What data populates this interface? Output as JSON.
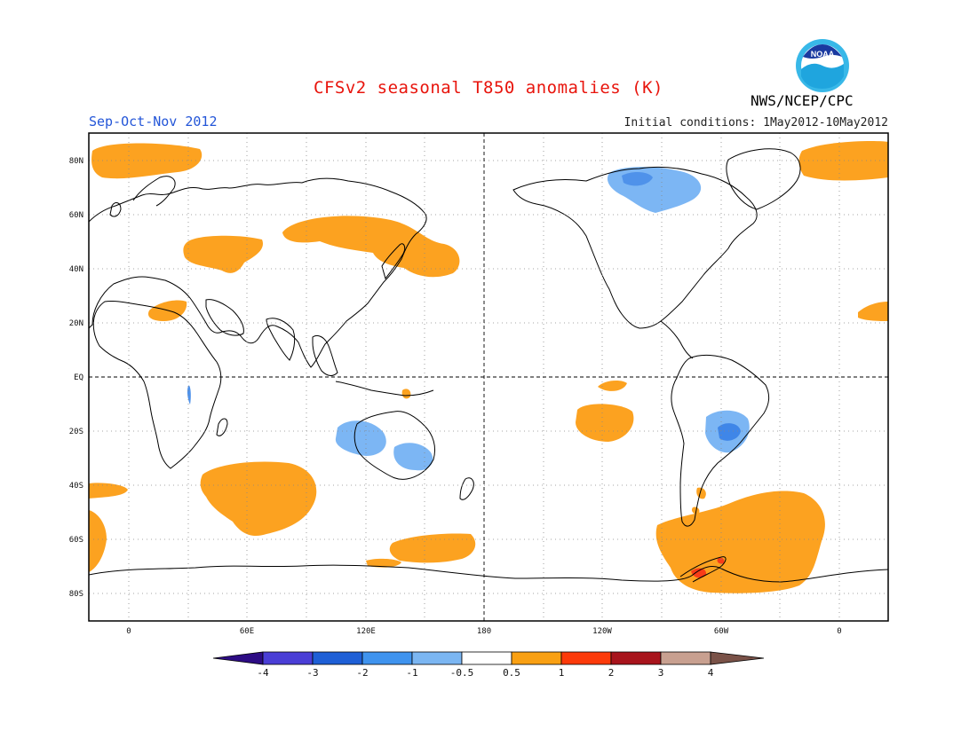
{
  "header": {
    "title": "CFSv2 seasonal T850 anomalies (K)",
    "season": "Sep-Oct-Nov 2012",
    "initial_conditions": "Initial conditions: 1May2012-10May2012",
    "agency": "NWS/NCEP/CPC",
    "logo_text": "NOAA"
  },
  "map": {
    "projection": "equirectangular",
    "longitude_range": [
      -20,
      380
    ],
    "latitude_range": [
      -90,
      90
    ],
    "lat_labels": [
      "80N",
      "60N",
      "40N",
      "20N",
      "EQ",
      "20S",
      "40S",
      "60S",
      "80S"
    ],
    "lon_labels": [
      "0",
      "60E",
      "120E",
      "180",
      "120W",
      "60W",
      "0"
    ],
    "grid": "dotted",
    "reference_lines": [
      "EQ",
      "180"
    ],
    "anomaly_regions": [
      {
        "name": "arctic-europe",
        "sign": "warm",
        "level": "0.5-1"
      },
      {
        "name": "central-asia-siberia",
        "sign": "warm",
        "level": "0.5-1"
      },
      {
        "name": "black-sea-caspian",
        "sign": "warm",
        "level": "0.5-1"
      },
      {
        "name": "north-africa-arabia",
        "sign": "warm",
        "level": "0.5-1"
      },
      {
        "name": "south-indian-ocean",
        "sign": "warm",
        "level": "0.5-1"
      },
      {
        "name": "southern-ocean-australia",
        "sign": "warm",
        "level": "0.5-1"
      },
      {
        "name": "south-atlantic-southeast",
        "sign": "warm",
        "level": "0.5-1"
      },
      {
        "name": "east-pacific-tropics",
        "sign": "warm",
        "level": "0.5-1"
      },
      {
        "name": "drake-passage-antarctic-peninsula",
        "sign": "warm",
        "level": "0.5-2"
      },
      {
        "name": "west-australia",
        "sign": "cool",
        "level": "-1--0.5"
      },
      {
        "name": "east-australia",
        "sign": "cool",
        "level": "-1--0.5"
      },
      {
        "name": "brazil-paraguay",
        "sign": "cool",
        "level": "-2--0.5"
      },
      {
        "name": "northern-canada",
        "sign": "cool",
        "level": "-1--0.5"
      },
      {
        "name": "new-guinea",
        "sign": "warm",
        "level": "0.5-1"
      }
    ]
  },
  "colorbar": {
    "labels": [
      "-4",
      "-3",
      "-2",
      "-1",
      "-0.5",
      "0.5",
      "1",
      "2",
      "3",
      "4"
    ],
    "colors": [
      "#2d0c84",
      "#4a3ed6",
      "#1e5fd6",
      "#3f93ee",
      "#7bb6f2",
      "#ffffff",
      "#f9a013",
      "#fc3a0a",
      "#a8141c",
      "#c8a090",
      "#7a5248"
    ]
  },
  "colors": {
    "warm_light": "#fca220",
    "warm_medium": "#f83c18",
    "cool_light": "#7cb6f4",
    "cool_medium": "#3f86e8",
    "title_red": "#e8140c",
    "season_blue": "#2456d8"
  }
}
